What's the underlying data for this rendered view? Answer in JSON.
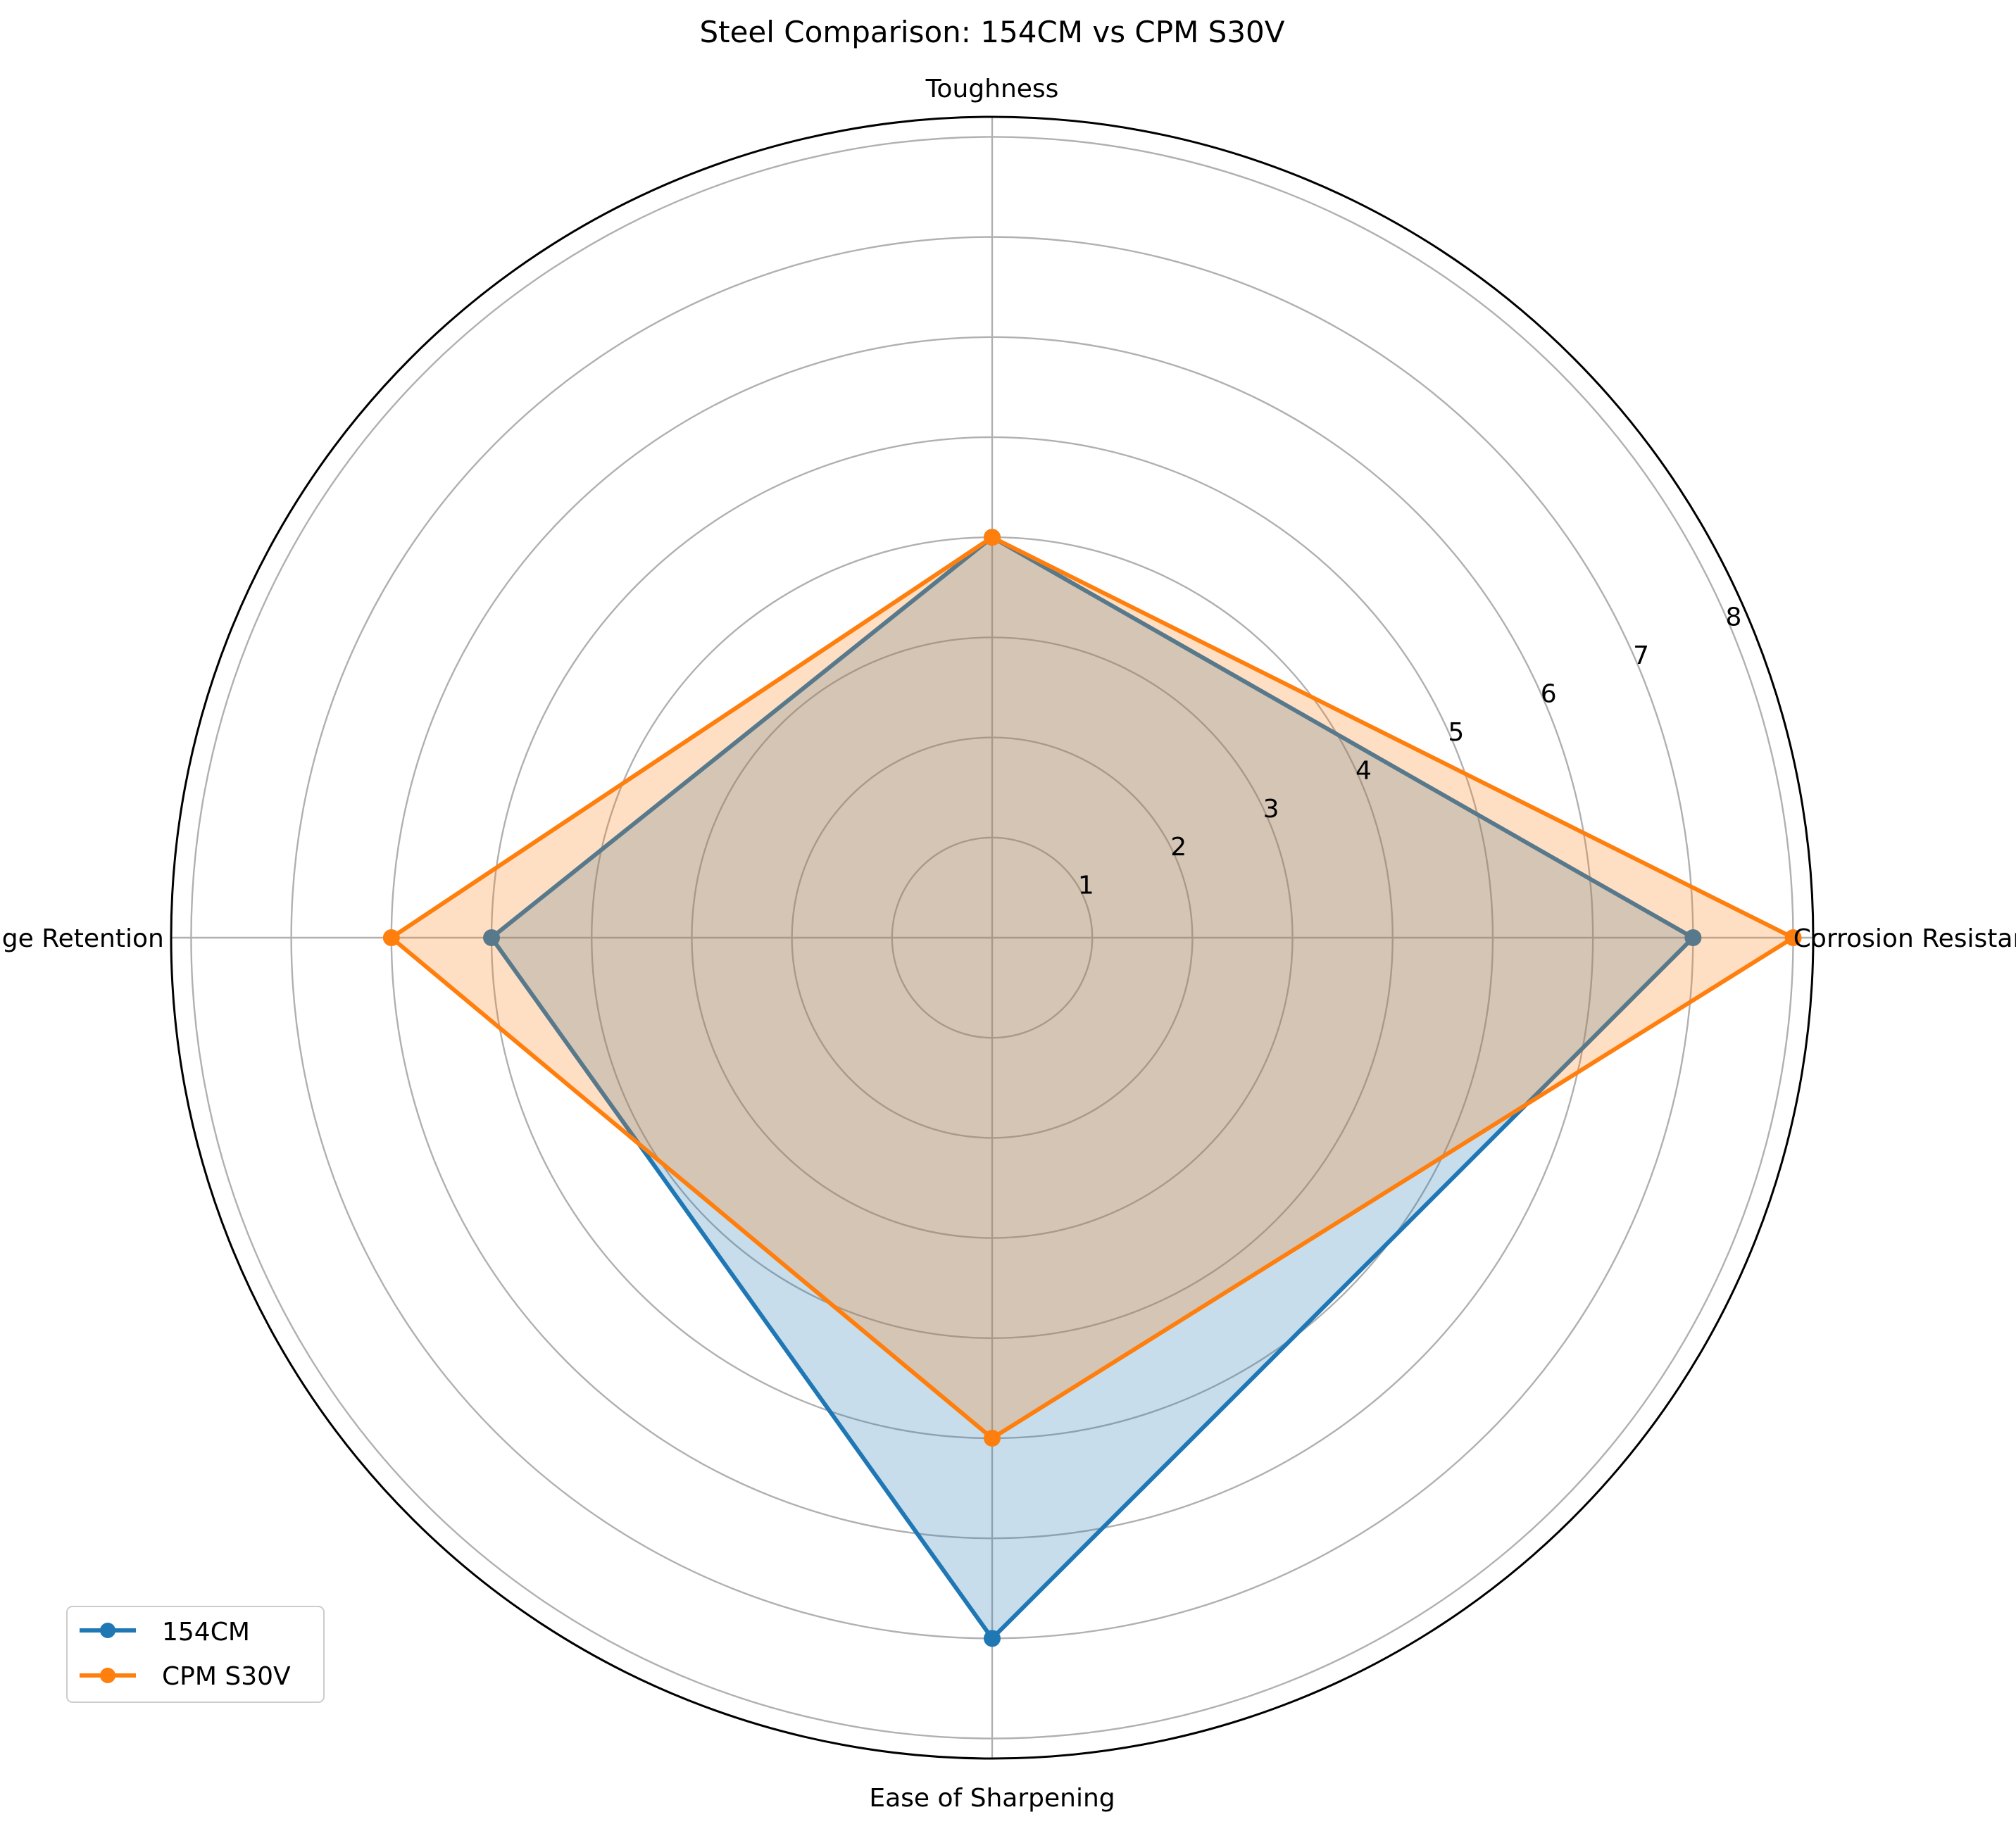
{
  "chart_data": {
    "type": "radar",
    "title": "Steel Comparison: 154CM vs CPM S30V",
    "categories": [
      "Corrosion Resistance",
      "Toughness",
      "Edge Retention",
      "Ease of Sharpening"
    ],
    "series": [
      {
        "name": "154CM",
        "values": [
          7,
          4,
          5,
          7
        ],
        "color": "#1f77b4"
      },
      {
        "name": "CPM S30V",
        "values": [
          8,
          4,
          6,
          5
        ],
        "color": "#ff7f0e"
      }
    ],
    "radial_ticks": [
      1,
      2,
      3,
      4,
      5,
      6,
      7,
      8
    ],
    "rlim": [
      0,
      8.2
    ],
    "grid": true,
    "legend": "lower-left"
  }
}
